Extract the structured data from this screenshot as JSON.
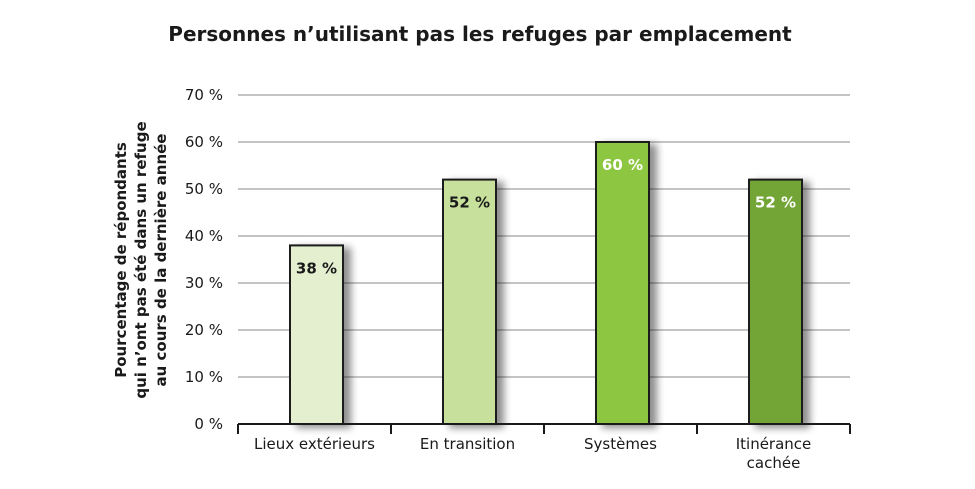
{
  "chart_data": {
    "type": "bar",
    "title": "Personnes n’utilisant pas les refuges par emplacement",
    "ylabel_lines": [
      "Pourcentage de répondants",
      "qui n’ont pas été dans un refuge",
      "au cours de la dernière année"
    ],
    "xlabel": "",
    "categories": [
      [
        "Lieux extérieurs"
      ],
      [
        "En transition"
      ],
      [
        "Systèmes"
      ],
      [
        "Itinérance",
        "cachée"
      ]
    ],
    "values": [
      38,
      52,
      60,
      52
    ],
    "value_labels": [
      "38 %",
      "52 %",
      "60 %",
      "52 %"
    ],
    "bar_colors": [
      "#e3efcf",
      "#c7e19c",
      "#8dc63f",
      "#72a536"
    ],
    "label_colors": [
      "#1a1a1a",
      "#1a1a1a",
      "#ffffff",
      "#ffffff"
    ],
    "ylim": [
      0,
      70
    ],
    "yticks": [
      0,
      10,
      20,
      30,
      40,
      50,
      60,
      70
    ],
    "ytick_labels": [
      "0 %",
      "10 %",
      "20 %",
      "30 %",
      "40 %",
      "50 %",
      "60 %",
      "70 %"
    ],
    "grid": true,
    "legend": "none"
  }
}
